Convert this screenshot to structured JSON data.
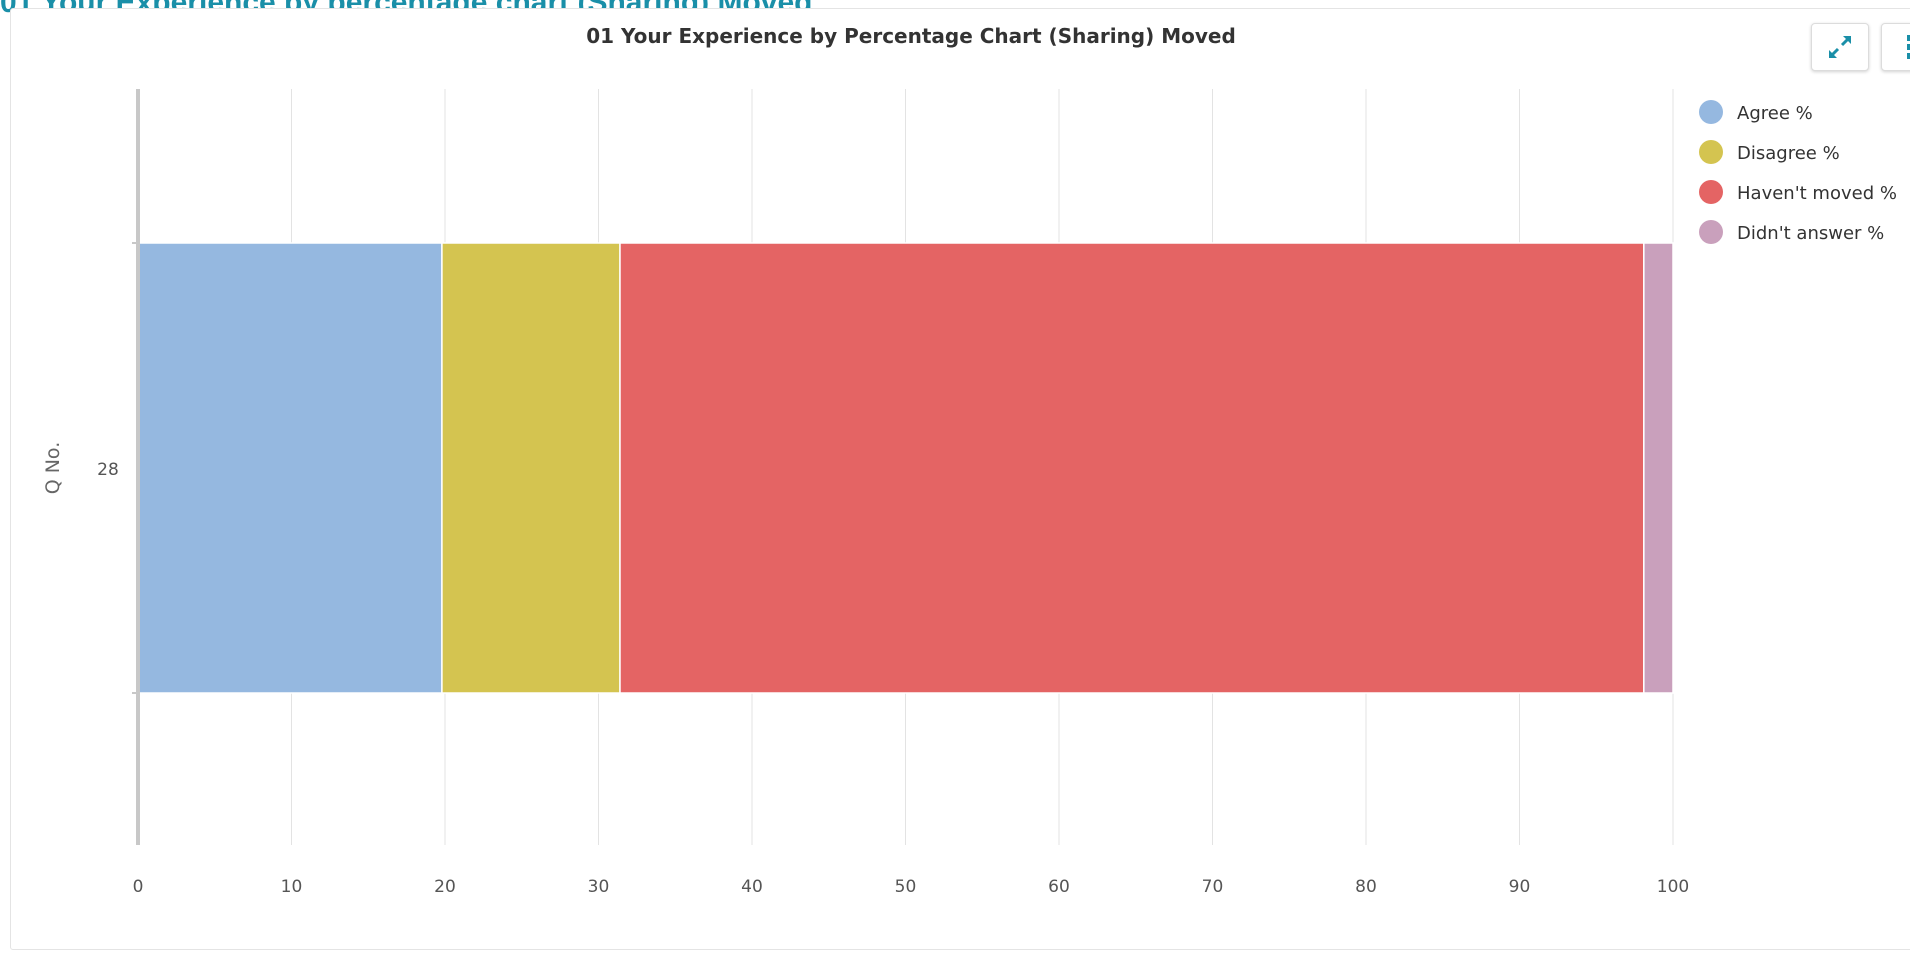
{
  "header": {
    "title": "01 Your Experience by percentage chart (Sharing) Moved"
  },
  "toolbar": {
    "expand_icon": "expand-icon",
    "menu_icon": "kebab-menu-icon"
  },
  "colors": {
    "accent": "#1a8fa8",
    "agree": "#95b8e0",
    "disagree": "#d4c450",
    "havent_moved": "#e46464",
    "didnt_answer": "#c9a0bc"
  },
  "chart_data": {
    "type": "bar",
    "orientation": "horizontal",
    "stacked": true,
    "title": "01 Your Experience by Percentage Chart (Sharing) Moved",
    "xlabel": "",
    "ylabel": "Q No.",
    "categories": [
      "28"
    ],
    "xlim": [
      0,
      100
    ],
    "xticks": [
      0,
      10,
      20,
      30,
      40,
      50,
      60,
      70,
      80,
      90,
      100
    ],
    "grid": true,
    "legend_position": "top-right",
    "series": [
      {
        "name": "Agree %",
        "values": [
          19.8
        ],
        "color": "#95b8e0"
      },
      {
        "name": "Disagree %",
        "values": [
          11.6
        ],
        "color": "#d4c450"
      },
      {
        "name": "Haven't moved %",
        "values": [
          66.7
        ],
        "color": "#e46464"
      },
      {
        "name": "Didn't answer %",
        "values": [
          1.9
        ],
        "color": "#c9a0bc"
      }
    ]
  }
}
